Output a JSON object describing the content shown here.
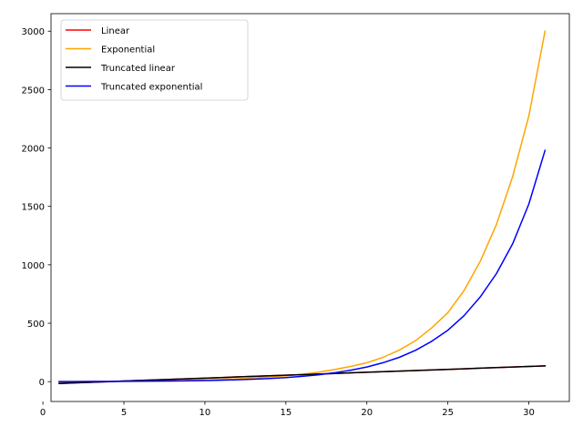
{
  "chart_data": {
    "type": "line",
    "title": "",
    "xlabel": "",
    "ylabel": "",
    "xlim": [
      0.5,
      32.5
    ],
    "ylim": [
      -170,
      3150
    ],
    "xticks": [
      0,
      5,
      10,
      15,
      20,
      25,
      30
    ],
    "yticks": [
      0,
      500,
      1000,
      1500,
      2000,
      2500,
      3000
    ],
    "grid": false,
    "legend_position": "top-left",
    "x": [
      1,
      2,
      3,
      4,
      5,
      6,
      7,
      8,
      9,
      10,
      11,
      12,
      13,
      14,
      15,
      16,
      17,
      18,
      19,
      20,
      21,
      22,
      23,
      24,
      25,
      26,
      27,
      28,
      29,
      30,
      31
    ],
    "series": [
      {
        "name": "Linear",
        "color": "#ff0000",
        "values": [
          -15.5,
          -10,
          -5,
          0,
          5,
          10,
          15,
          20,
          25,
          30,
          35,
          40,
          45,
          50,
          55,
          60,
          65,
          70,
          75,
          80,
          85,
          90,
          95,
          100,
          105,
          110,
          115,
          120,
          125,
          130,
          135
        ]
      },
      {
        "name": "Exponential",
        "color": "#ffa500",
        "values": [
          0.5,
          1,
          1.5,
          2,
          3,
          4,
          6,
          8,
          11,
          14,
          19,
          24,
          31,
          40,
          50,
          63,
          80,
          104,
          130,
          162,
          208,
          270,
          350,
          460,
          590,
          780,
          1030,
          1345,
          1755,
          2275,
          3000
        ]
      },
      {
        "name": "Truncated linear",
        "color": "#000000",
        "values": [
          -15.5,
          -10,
          -5,
          0,
          5,
          10,
          15,
          20,
          25,
          30,
          35,
          40,
          45,
          50,
          55,
          60,
          65,
          70,
          75,
          80,
          85,
          90,
          95,
          100,
          105,
          110,
          115,
          120,
          125,
          130,
          135
        ]
      },
      {
        "name": "Truncated exponential",
        "color": "#0000ff",
        "values": [
          0.3,
          0.6,
          1,
          1.5,
          2,
          3,
          4,
          5,
          7,
          9,
          12,
          16,
          21,
          27,
          35,
          45,
          58,
          76,
          98,
          125,
          162,
          208,
          268,
          345,
          440,
          565,
          725,
          925,
          1180,
          1520,
          1980
        ]
      }
    ]
  }
}
